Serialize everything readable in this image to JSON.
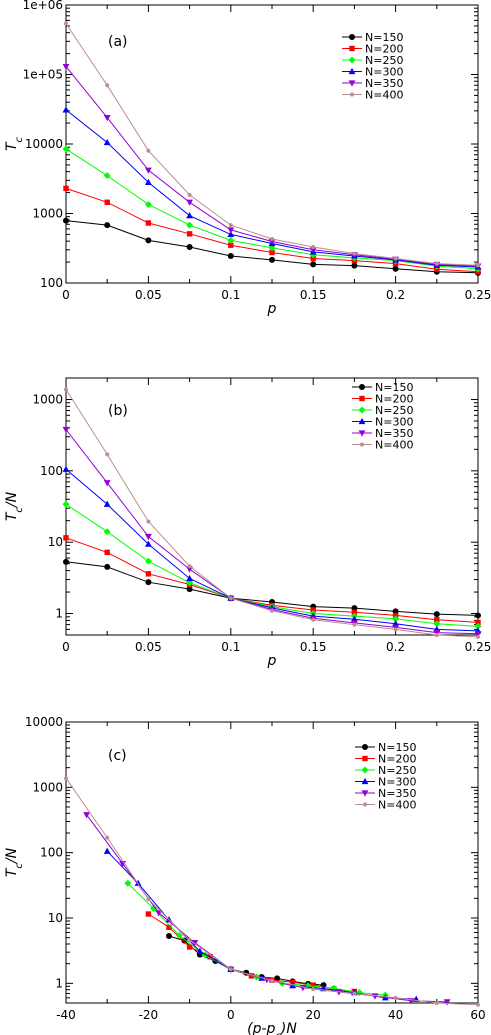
{
  "chart_data": [
    {
      "type": "line",
      "panel_label": "(a)",
      "xlabel": "p",
      "ylabel": "T_c",
      "xlim": [
        0,
        0.25
      ],
      "ylim": [
        100,
        1000000
      ],
      "yscale": "log",
      "x_ticks": [
        "0",
        "0.05",
        "0.1",
        "0.15",
        "0.2",
        "0.25"
      ],
      "y_ticks": [
        "100",
        "1000",
        "10000",
        "1e+05",
        "1e+06"
      ],
      "legend_position": "top-right",
      "x": [
        0,
        0.025,
        0.05,
        0.075,
        0.1,
        0.125,
        0.15,
        0.175,
        0.2,
        0.225,
        0.25
      ],
      "series": [
        {
          "name": "N=150",
          "color": "#000000",
          "marker": "circle",
          "values": [
            790,
            680,
            410,
            330,
            245,
            215,
            185,
            178,
            160,
            145,
            140
          ]
        },
        {
          "name": "N=200",
          "color": "#ff0000",
          "marker": "square",
          "values": [
            2300,
            1450,
            730,
            510,
            350,
            275,
            225,
            210,
            190,
            158,
            145
          ]
        },
        {
          "name": "N=250",
          "color": "#00ff00",
          "marker": "diamond",
          "values": [
            8500,
            3500,
            1350,
            680,
            410,
            320,
            255,
            230,
            210,
            175,
            160
          ]
        },
        {
          "name": "N=300",
          "color": "#0000ff",
          "marker": "triangle-up",
          "values": [
            31000,
            10500,
            2800,
            930,
            500,
            370,
            280,
            245,
            215,
            180,
            170
          ]
        },
        {
          "name": "N=350",
          "color": "#9400d3",
          "marker": "triangle-down",
          "values": [
            130000,
            24000,
            4200,
            1450,
            580,
            395,
            300,
            255,
            220,
            185,
            175
          ]
        },
        {
          "name": "N=400",
          "color": "#bc8f8f",
          "marker": "circle-small",
          "values": [
            540000,
            70000,
            8000,
            1850,
            680,
            430,
            330,
            265,
            225,
            190,
            180
          ]
        }
      ]
    },
    {
      "type": "line",
      "panel_label": "(b)",
      "xlabel": "p",
      "ylabel": "T_c/N",
      "xlim": [
        0,
        0.25
      ],
      "ylim": [
        0.5,
        2000
      ],
      "yscale": "log",
      "x_ticks": [
        "0",
        "0.05",
        "0.1",
        "0.15",
        "0.2",
        "0.25"
      ],
      "y_ticks": [
        "1",
        "10",
        "100",
        "1000"
      ],
      "legend_position": "top-right",
      "x": [
        0,
        0.025,
        0.05,
        0.075,
        0.1,
        0.125,
        0.15,
        0.175,
        0.2,
        0.225,
        0.25
      ],
      "series": [
        {
          "name": "N=150",
          "color": "#000000",
          "marker": "circle",
          "values": [
            5.3,
            4.5,
            2.75,
            2.2,
            1.64,
            1.45,
            1.25,
            1.19,
            1.07,
            0.98,
            0.94
          ]
        },
        {
          "name": "N=200",
          "color": "#ff0000",
          "marker": "square",
          "values": [
            11.5,
            7.2,
            3.6,
            2.55,
            1.64,
            1.3,
            1.12,
            1.04,
            0.94,
            0.82,
            0.75
          ]
        },
        {
          "name": "N=250",
          "color": "#00ff00",
          "marker": "diamond",
          "values": [
            34,
            14,
            5.4,
            2.7,
            1.64,
            1.25,
            1.0,
            0.92,
            0.84,
            0.72,
            0.66
          ]
        },
        {
          "name": "N=300",
          "color": "#0000ff",
          "marker": "triangle-up",
          "values": [
            105,
            34,
            9.4,
            3.1,
            1.64,
            1.2,
            0.92,
            0.83,
            0.72,
            0.6,
            0.57
          ]
        },
        {
          "name": "N=350",
          "color": "#9400d3",
          "marker": "triangle-down",
          "values": [
            380,
            68,
            12,
            4.2,
            1.64,
            1.14,
            0.86,
            0.74,
            0.64,
            0.54,
            0.52
          ]
        },
        {
          "name": "N=400",
          "color": "#bc8f8f",
          "marker": "circle-small",
          "values": [
            1380,
            170,
            19.5,
            4.6,
            1.64,
            1.1,
            0.82,
            0.7,
            0.6,
            0.5,
            0.47
          ]
        }
      ]
    },
    {
      "type": "line",
      "panel_label": "(c)",
      "xlabel": "(p-p_c)N",
      "ylabel": "T_c/N",
      "xlim": [
        -40,
        60
      ],
      "ylim": [
        0.5,
        10000
      ],
      "yscale": "log",
      "x_ticks": [
        "-40",
        "-20",
        "0",
        "20",
        "40",
        "60"
      ],
      "y_ticks": [
        "1",
        "10",
        "100",
        "1000",
        "10000"
      ],
      "legend_position": "top-right",
      "series": [
        {
          "name": "N=150",
          "color": "#000000",
          "marker": "circle",
          "x": [
            -15,
            -11.25,
            -7.5,
            -3.75,
            0,
            3.75,
            7.5,
            11.25,
            15,
            18.75,
            22.5
          ],
          "values": [
            5.3,
            4.5,
            2.75,
            2.2,
            1.64,
            1.45,
            1.25,
            1.19,
            1.07,
            0.98,
            0.94
          ]
        },
        {
          "name": "N=200",
          "color": "#ff0000",
          "marker": "square",
          "x": [
            -20,
            -15,
            -10,
            -5,
            0,
            5,
            10,
            15,
            20,
            25,
            30
          ],
          "values": [
            11.5,
            7.2,
            3.6,
            2.55,
            1.64,
            1.3,
            1.12,
            1.04,
            0.94,
            0.82,
            0.75
          ]
        },
        {
          "name": "N=250",
          "color": "#00ff00",
          "marker": "diamond",
          "x": [
            -25,
            -18.75,
            -12.5,
            -6.25,
            0,
            6.25,
            12.5,
            18.75,
            25,
            31.25,
            37.5
          ],
          "values": [
            34,
            14,
            5.4,
            2.7,
            1.64,
            1.25,
            1.0,
            0.92,
            0.84,
            0.72,
            0.66
          ]
        },
        {
          "name": "N=300",
          "color": "#0000ff",
          "marker": "triangle-up",
          "x": [
            -30,
            -22.5,
            -15,
            -7.5,
            0,
            7.5,
            15,
            22.5,
            30,
            37.5,
            45
          ],
          "values": [
            105,
            34,
            9.4,
            3.1,
            1.64,
            1.2,
            0.92,
            0.83,
            0.72,
            0.6,
            0.57
          ]
        },
        {
          "name": "N=350",
          "color": "#9400d3",
          "marker": "triangle-down",
          "x": [
            -35,
            -26.25,
            -17.5,
            -8.75,
            0,
            8.75,
            17.5,
            26.25,
            35,
            43.75,
            52.5
          ],
          "values": [
            380,
            68,
            12,
            4.2,
            1.64,
            1.14,
            0.86,
            0.74,
            0.64,
            0.54,
            0.52
          ]
        },
        {
          "name": "N=400",
          "color": "#bc8f8f",
          "marker": "circle-small",
          "x": [
            -40,
            -30,
            -20,
            -10,
            0,
            10,
            20,
            30,
            40,
            50,
            60
          ],
          "values": [
            1380,
            170,
            19.5,
            4.6,
            1.64,
            1.1,
            0.82,
            0.7,
            0.6,
            0.5,
            0.47
          ]
        }
      ]
    }
  ]
}
